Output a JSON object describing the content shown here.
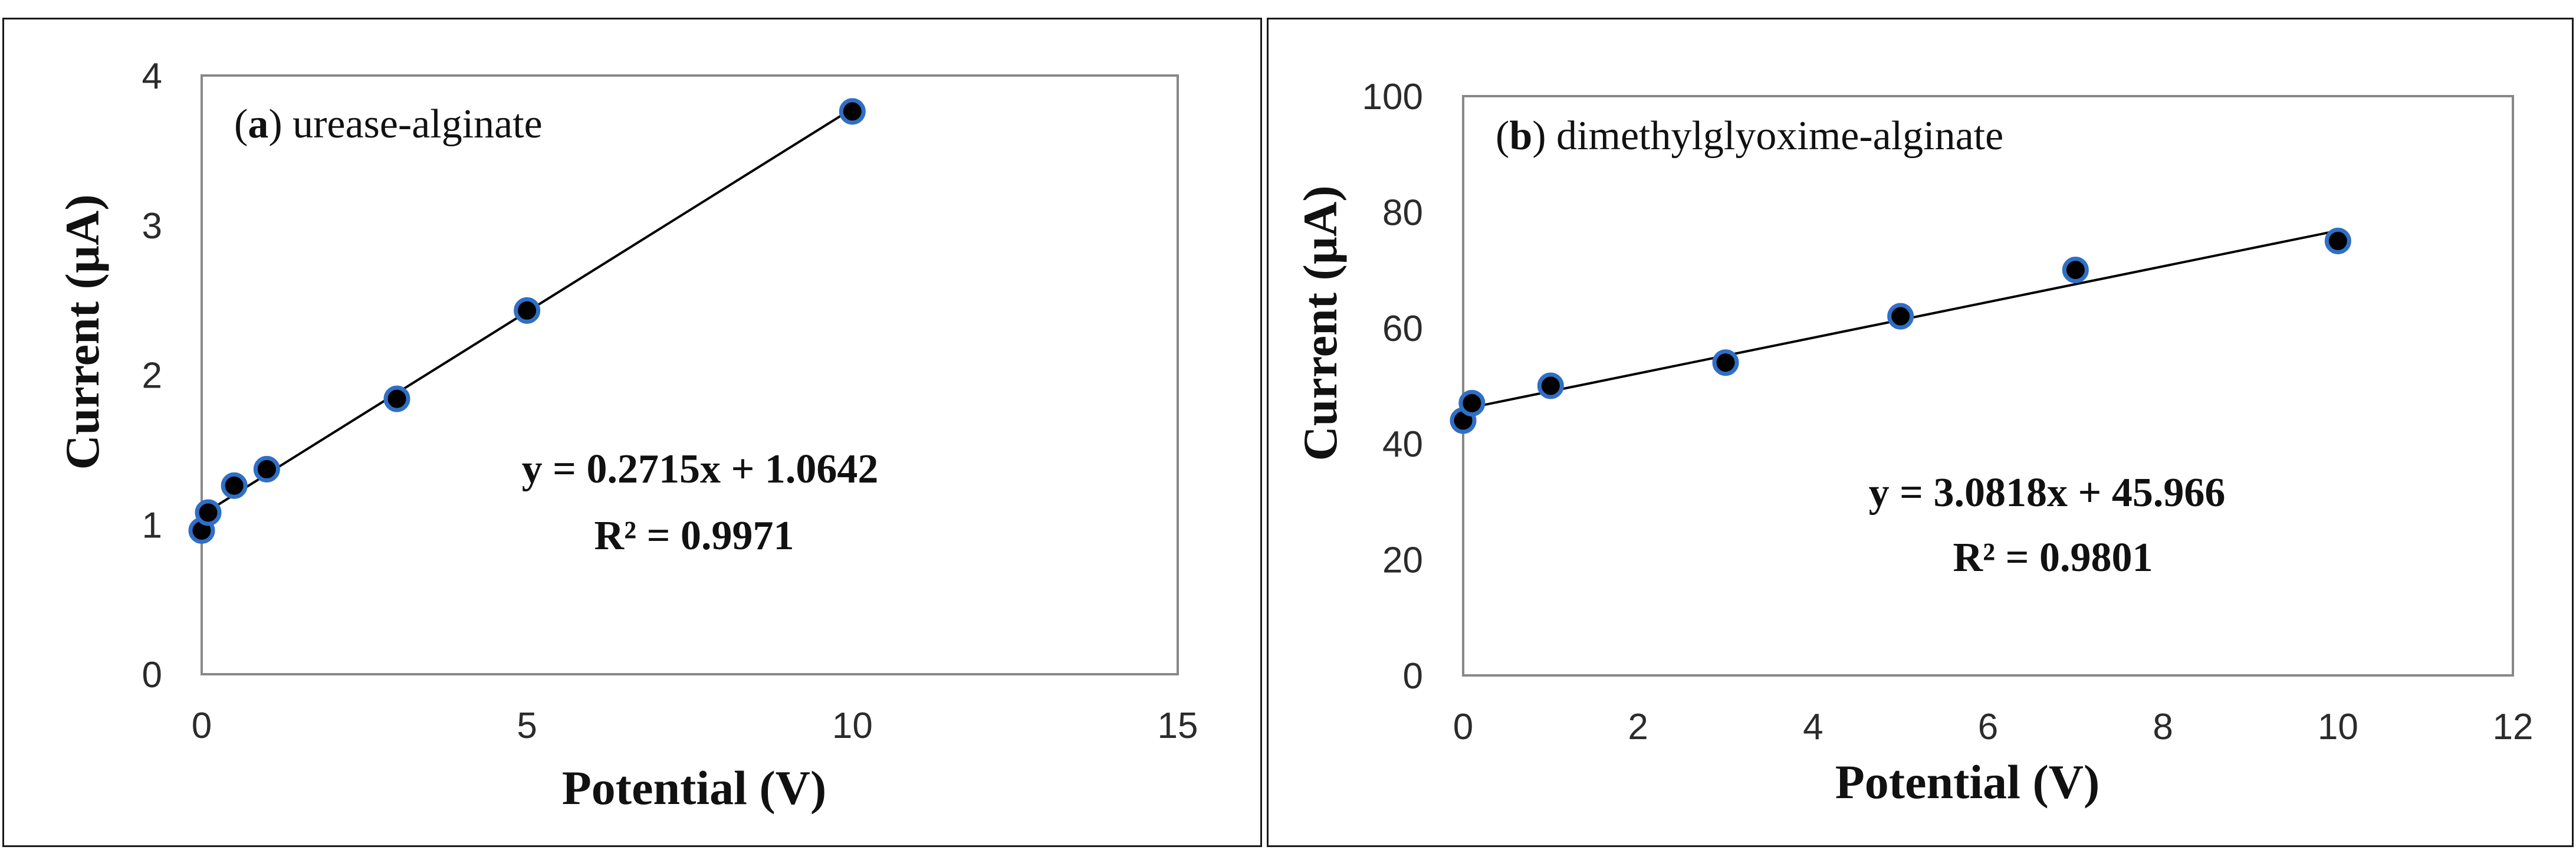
{
  "chart_data": [
    {
      "type": "scatter",
      "title_letter": "a",
      "title_rest": "urease-alginate",
      "xlabel": "Potential (V)",
      "ylabel": "Current (µA)",
      "xlim": [
        0,
        15
      ],
      "ylim": [
        0,
        4
      ],
      "xticks": [
        0,
        5,
        10,
        15
      ],
      "yticks": [
        0,
        1,
        2,
        3,
        4
      ],
      "xtick_labels": [
        "0",
        "5",
        "10",
        "15"
      ],
      "ytick_labels": [
        "0",
        "1",
        "2",
        "3",
        "4"
      ],
      "series": [
        {
          "name": "urease-alginate",
          "x": [
            0,
            0.1,
            0.5,
            1,
            3,
            5,
            10
          ],
          "y": [
            0.96,
            1.08,
            1.26,
            1.37,
            1.84,
            2.43,
            3.76
          ]
        }
      ],
      "trendline": {
        "slope": 0.2715,
        "intercept": 1.0642,
        "x_range": [
          0,
          10
        ]
      },
      "equation": "y = 0.2715x + 1.0642",
      "r_squared": "R² = 0.9971",
      "colors": {
        "marker_fill": "#000000",
        "marker_stroke": "#2f6fc6",
        "line": "#000000",
        "plot_border": "#888888"
      }
    },
    {
      "type": "scatter",
      "title_letter": "b",
      "title_rest": "dimethylglyoxime-alginate",
      "xlabel": "Potential (V)",
      "ylabel": "Current (µA)",
      "xlim": [
        0,
        12
      ],
      "ylim": [
        0,
        100
      ],
      "xticks": [
        0,
        2,
        4,
        6,
        8,
        10,
        12
      ],
      "yticks": [
        0,
        20,
        40,
        60,
        80,
        100
      ],
      "xtick_labels": [
        "0",
        "2",
        "4",
        "6",
        "8",
        "10",
        "12"
      ],
      "ytick_labels": [
        "0",
        "20",
        "40",
        "60",
        "80",
        "100"
      ],
      "series": [
        {
          "name": "dimethylglyoxime-alginate",
          "x": [
            0,
            0.1,
            1,
            3,
            5,
            7,
            10
          ],
          "y": [
            44,
            47,
            50,
            54,
            62,
            70,
            75
          ]
        }
      ],
      "trendline": {
        "slope": 3.0818,
        "intercept": 45.966,
        "x_range": [
          0,
          10
        ]
      },
      "equation": "y = 3.0818x + 45.966",
      "r_squared": "R² = 0.9801",
      "colors": {
        "marker_fill": "#000000",
        "marker_stroke": "#2f6fc6",
        "line": "#000000",
        "plot_border": "#888888"
      }
    }
  ]
}
